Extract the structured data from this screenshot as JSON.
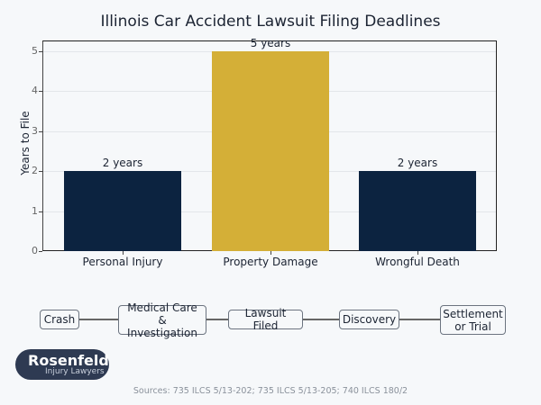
{
  "chart_data": {
    "type": "bar",
    "title": "Illinois Car Accident Lawsuit Filing Deadlines",
    "xlabel": "",
    "ylabel": "Years to File",
    "categories": [
      "Personal Injury",
      "Property Damage",
      "Wrongful Death"
    ],
    "values": [
      2,
      5,
      2
    ],
    "data_labels": [
      "2 years",
      "5 years",
      "2 years"
    ],
    "colors": [
      "#0c2340",
      "#d4af37",
      "#0c2340"
    ],
    "ylim": [
      0,
      5.25
    ],
    "yticks": [
      "0",
      "1",
      "2",
      "3",
      "4",
      "5"
    ],
    "grid": true,
    "legend": null
  },
  "process": {
    "steps": [
      "Crash",
      "Medical Care\n& Investigation",
      "Lawsuit Filed",
      "Discovery",
      "Settlement\nor Trial"
    ]
  },
  "logo": {
    "name": "Rosenfeld",
    "subtitle": "Injury Lawyers"
  },
  "sources": "Sources: 735 ILCS 5/13-202; 735 ILCS 5/13-205; 740 ILCS 180/2"
}
